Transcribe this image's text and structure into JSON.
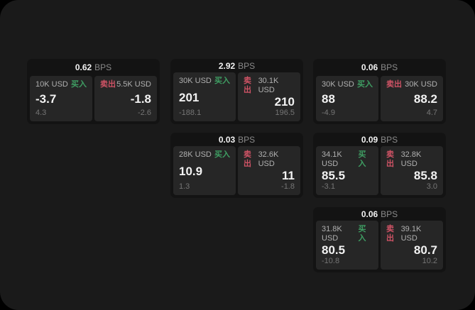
{
  "labels": {
    "bps_unit": "BPS",
    "buy": "买入",
    "sell": "卖出"
  },
  "colors": {
    "page_background": "#1a1a1a",
    "card_background": "#131313",
    "panel_background": "#262626",
    "buy_green": "#3f9e63",
    "sell_red": "#cf5365"
  },
  "cards": [
    {
      "bps": "0.62",
      "buy": {
        "amount": "10K USD",
        "value": "-3.7",
        "sub": "4.3"
      },
      "sell": {
        "amount": "5.5K USD",
        "value": "-1.8",
        "sub": "-2.6"
      }
    },
    {
      "bps": "2.92",
      "buy": {
        "amount": "30K USD",
        "value": "201",
        "sub": "-188.1"
      },
      "sell": {
        "amount": "30.1K USD",
        "value": "210",
        "sub": "196.5"
      }
    },
    {
      "bps": "0.06",
      "buy": {
        "amount": "30K USD",
        "value": "88",
        "sub": "-4.9"
      },
      "sell": {
        "amount": "30K USD",
        "value": "88.2",
        "sub": "4.7"
      }
    },
    {
      "bps": "0.03",
      "buy": {
        "amount": "28K USD",
        "value": "10.9",
        "sub": "1.3"
      },
      "sell": {
        "amount": "32.6K USD",
        "value": "11",
        "sub": "-1.8"
      }
    },
    {
      "bps": "0.09",
      "buy": {
        "amount": "34.1K USD",
        "value": "85.5",
        "sub": "-3.1"
      },
      "sell": {
        "amount": "32.8K USD",
        "value": "85.8",
        "sub": "3.0"
      }
    },
    {
      "bps": "0.06",
      "buy": {
        "amount": "31.8K USD",
        "value": "80.5",
        "sub": "-10.8"
      },
      "sell": {
        "amount": "39.1K USD",
        "value": "80.7",
        "sub": "10.2"
      }
    }
  ]
}
